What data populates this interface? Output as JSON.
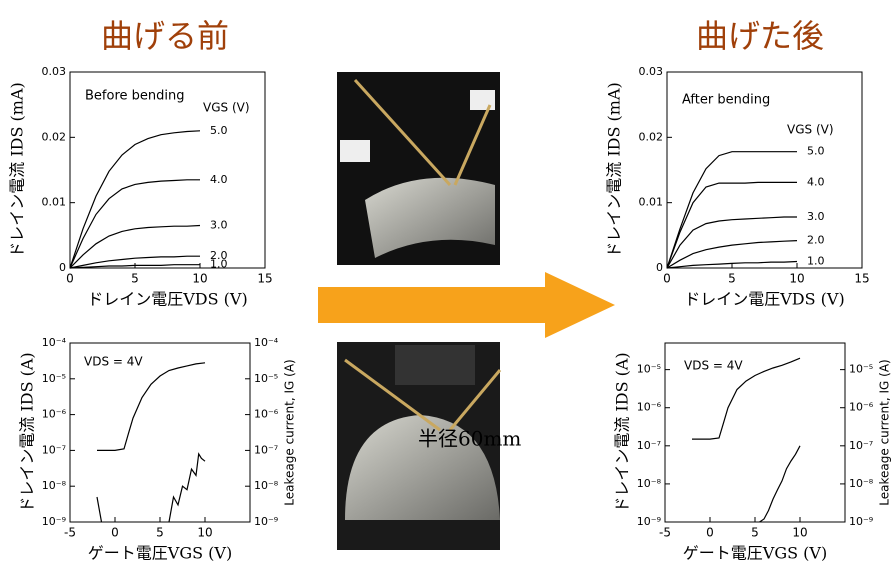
{
  "headers": {
    "before": "曲げる前",
    "after": "曲げた後"
  },
  "photo_label": "半径60mm",
  "chart_data": [
    {
      "type": "line",
      "annotations": [
        "Before bending",
        "VGS (V)"
      ],
      "x_label": "ドレイン電圧VDS (V)",
      "y_label": "ドレイン電流 IDS (mA)",
      "xlim": [
        0,
        15
      ],
      "xticks": [
        0,
        5,
        10,
        15
      ],
      "ylim": [
        0,
        0.03
      ],
      "yticks": [
        0,
        0.01,
        0.02,
        0.03
      ],
      "x": [
        0,
        1,
        2,
        3,
        4,
        5,
        6,
        7,
        8,
        9,
        10
      ],
      "series": [
        {
          "name": "5.0",
          "color": "#000000",
          "values": [
            0,
            0.006,
            0.011,
            0.0148,
            0.0173,
            0.0189,
            0.0198,
            0.0204,
            0.0207,
            0.0209,
            0.021
          ]
        },
        {
          "name": "4.0",
          "color": "#000000",
          "values": [
            0,
            0.0045,
            0.0082,
            0.0106,
            0.0121,
            0.0128,
            0.0131,
            0.0133,
            0.0134,
            0.0135,
            0.0135
          ]
        },
        {
          "name": "3.0",
          "color": "#000000",
          "values": [
            0,
            0.002,
            0.0037,
            0.0049,
            0.0056,
            0.006,
            0.0062,
            0.0063,
            0.0064,
            0.0064,
            0.0065
          ]
        },
        {
          "name": "2.0",
          "color": "#000000",
          "values": [
            0,
            0.0004,
            0.0008,
            0.0011,
            0.0013,
            0.0015,
            0.0016,
            0.0017,
            0.0017,
            0.0018,
            0.0018
          ]
        },
        {
          "name": "1.0",
          "color": "#000000",
          "values": [
            0,
            0.0001,
            0.0002,
            0.0003,
            0.0003,
            0.0004,
            0.0004,
            0.0004,
            0.0005,
            0.0005,
            0.0005
          ]
        }
      ]
    },
    {
      "type": "line",
      "annotations": [
        "After bending",
        "VGS (V)"
      ],
      "x_label": "ドレイン電圧VDS (V)",
      "y_label": "ドレイン電流 IDS (mA)",
      "xlim": [
        0,
        15
      ],
      "xticks": [
        0,
        5,
        10,
        15
      ],
      "ylim": [
        0,
        0.03
      ],
      "yticks": [
        0,
        0.01,
        0.02,
        0.03
      ],
      "x": [
        0,
        1,
        2,
        3,
        4,
        5,
        6,
        7,
        8,
        9,
        10
      ],
      "series": [
        {
          "name": "5.0",
          "color": "#000000",
          "values": [
            0,
            0.006,
            0.0115,
            0.0152,
            0.0172,
            0.0178,
            0.0178,
            0.0178,
            0.0178,
            0.0178,
            0.0178
          ]
        },
        {
          "name": "4.0",
          "color": "#000000",
          "values": [
            0,
            0.0055,
            0.01,
            0.0124,
            0.013,
            0.013,
            0.013,
            0.0131,
            0.0131,
            0.0131,
            0.0131
          ]
        },
        {
          "name": "3.0",
          "color": "#000000",
          "values": [
            0,
            0.0035,
            0.0058,
            0.0068,
            0.0072,
            0.0074,
            0.0075,
            0.0076,
            0.0077,
            0.0078,
            0.0078
          ]
        },
        {
          "name": "2.0",
          "color": "#000000",
          "values": [
            0,
            0.0012,
            0.0022,
            0.0028,
            0.0032,
            0.0035,
            0.0037,
            0.0039,
            0.004,
            0.0041,
            0.0042
          ]
        },
        {
          "name": "1.0",
          "color": "#000000",
          "values": [
            0,
            0.0002,
            0.0004,
            0.0005,
            0.0006,
            0.0007,
            0.0008,
            0.0008,
            0.0009,
            0.0009,
            0.001
          ]
        }
      ]
    },
    {
      "type": "line",
      "log_y": true,
      "annotations": [
        "VDS = 4V"
      ],
      "x_label": "ゲート電圧VGS (V)",
      "y_label": "ドレイン電流 IDS (A)",
      "y2_label": "Leakeage current, IG (A)",
      "xlim": [
        -5,
        15
      ],
      "xticks": [
        -5,
        0,
        5,
        10
      ],
      "ylim": [
        1e-09,
        0.0001
      ],
      "yticks": [
        {
          "value": 1e-09,
          "label": "10⁻⁹"
        },
        {
          "value": 1e-08,
          "label": "10⁻⁸"
        },
        {
          "value": 1e-07,
          "label": "10⁻⁷"
        },
        {
          "value": 1e-06,
          "label": "10⁻⁶"
        },
        {
          "value": 1e-05,
          "label": "10⁻⁵"
        },
        {
          "value": 0.0001,
          "label": "10⁻⁴"
        }
      ],
      "y2lim": [
        1e-09,
        0.0001
      ],
      "y2ticks": [
        {
          "value": 1e-09,
          "label": "10⁻⁹"
        },
        {
          "value": 1e-08,
          "label": "10⁻⁸"
        },
        {
          "value": 1e-07,
          "label": "10⁻⁷"
        },
        {
          "value": 1e-06,
          "label": "10⁻⁶"
        },
        {
          "value": 1e-05,
          "label": "10⁻⁵"
        },
        {
          "value": 0.0001,
          "label": "10⁻⁴"
        }
      ],
      "series": [
        {
          "color": "#000000",
          "x": [
            -2,
            -1,
            0,
            1,
            1.5,
            2,
            3,
            4,
            5,
            6,
            7,
            8,
            9,
            10
          ],
          "values": [
            1e-07,
            1e-07,
            1e-07,
            1.1e-07,
            3e-07,
            8e-07,
            3e-06,
            7e-06,
            1.2e-05,
            1.7e-05,
            2e-05,
            2.3e-05,
            2.6e-05,
            2.8e-05
          ]
        },
        {
          "color": "#000000",
          "axis": "y2",
          "x": [
            -2,
            -1.5,
            -1.4,
            6,
            6.5,
            7,
            7.5,
            8,
            8.5,
            9,
            9.3,
            9.6,
            10
          ],
          "values": [
            5e-09,
            1e-09,
            null,
            1e-09,
            5e-09,
            3e-09,
            1e-08,
            8e-09,
            3e-08,
            2e-08,
            8e-08,
            6e-08,
            5e-08
          ]
        }
      ]
    },
    {
      "type": "line",
      "log_y": true,
      "annotations": [
        "VDS = 4V"
      ],
      "x_label": "ゲート電圧VGS (V)",
      "y_label": "ドレイン電流 IDS (A)",
      "y2_label": "Leakeage current, IG (A)",
      "xlim": [
        -5,
        15
      ],
      "xticks": [
        -5,
        0,
        5,
        10
      ],
      "ylim": [
        1e-09,
        5e-05
      ],
      "yticks": [
        {
          "value": 1e-09,
          "label": "10⁻⁹"
        },
        {
          "value": 1e-08,
          "label": "10⁻⁸"
        },
        {
          "value": 1e-07,
          "label": "10⁻⁷"
        },
        {
          "value": 1e-06,
          "label": "10⁻⁶"
        },
        {
          "value": 1e-05,
          "label": "10⁻⁵"
        }
      ],
      "y2lim": [
        1e-09,
        5e-05
      ],
      "y2ticks": [
        {
          "value": 1e-09,
          "label": "10⁻⁹"
        },
        {
          "value": 1e-08,
          "label": "10⁻⁸"
        },
        {
          "value": 1e-07,
          "label": "10⁻⁷"
        },
        {
          "value": 1e-06,
          "label": "10⁻⁶"
        },
        {
          "value": 1e-05,
          "label": "10⁻⁵"
        }
      ],
      "series": [
        {
          "color": "#000000",
          "x": [
            -2,
            -1,
            0,
            1,
            1.5,
            2,
            3,
            4,
            5,
            6,
            7,
            8,
            9,
            10
          ],
          "values": [
            1.5e-07,
            1.5e-07,
            1.5e-07,
            1.6e-07,
            4e-07,
            1e-06,
            3e-06,
            5e-06,
            7e-06,
            9e-06,
            1.1e-05,
            1.3e-05,
            1.6e-05,
            2e-05
          ]
        },
        {
          "color": "#000000",
          "axis": "y2",
          "x": [
            5.5,
            6,
            6.5,
            7,
            7.5,
            8,
            8.5,
            9,
            9.5,
            10
          ],
          "values": [
            1e-09,
            1.2e-09,
            2e-09,
            4e-09,
            7e-09,
            1.2e-08,
            2.5e-08,
            4e-08,
            6e-08,
            1e-07
          ]
        }
      ]
    }
  ]
}
